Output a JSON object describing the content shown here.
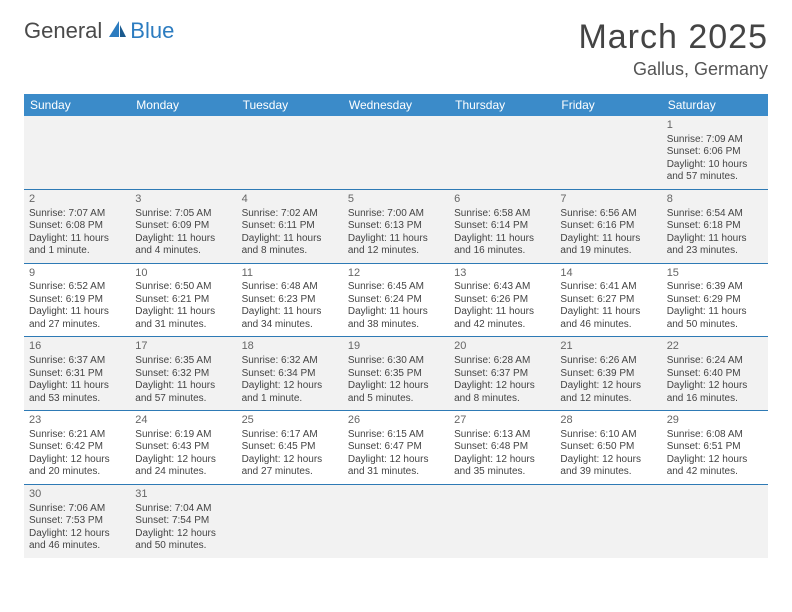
{
  "brand": {
    "part1": "General",
    "part2": "Blue",
    "color1": "#4a4a4a",
    "color2": "#2c7cc0"
  },
  "title": "March 2025",
  "location": "Gallus, Germany",
  "header_bg": "#3b8bc9",
  "border_color": "#2e7ab5",
  "shade_bg": "#f2f2f2",
  "day_headers": [
    "Sunday",
    "Monday",
    "Tuesday",
    "Wednesday",
    "Thursday",
    "Friday",
    "Saturday"
  ],
  "weeks": [
    [
      null,
      null,
      null,
      null,
      null,
      null,
      {
        "n": "1",
        "sr": "Sunrise: 7:09 AM",
        "ss": "Sunset: 6:06 PM",
        "dl1": "Daylight: 10 hours",
        "dl2": "and 57 minutes."
      }
    ],
    [
      {
        "n": "2",
        "sr": "Sunrise: 7:07 AM",
        "ss": "Sunset: 6:08 PM",
        "dl1": "Daylight: 11 hours",
        "dl2": "and 1 minute."
      },
      {
        "n": "3",
        "sr": "Sunrise: 7:05 AM",
        "ss": "Sunset: 6:09 PM",
        "dl1": "Daylight: 11 hours",
        "dl2": "and 4 minutes."
      },
      {
        "n": "4",
        "sr": "Sunrise: 7:02 AM",
        "ss": "Sunset: 6:11 PM",
        "dl1": "Daylight: 11 hours",
        "dl2": "and 8 minutes."
      },
      {
        "n": "5",
        "sr": "Sunrise: 7:00 AM",
        "ss": "Sunset: 6:13 PM",
        "dl1": "Daylight: 11 hours",
        "dl2": "and 12 minutes."
      },
      {
        "n": "6",
        "sr": "Sunrise: 6:58 AM",
        "ss": "Sunset: 6:14 PM",
        "dl1": "Daylight: 11 hours",
        "dl2": "and 16 minutes."
      },
      {
        "n": "7",
        "sr": "Sunrise: 6:56 AM",
        "ss": "Sunset: 6:16 PM",
        "dl1": "Daylight: 11 hours",
        "dl2": "and 19 minutes."
      },
      {
        "n": "8",
        "sr": "Sunrise: 6:54 AM",
        "ss": "Sunset: 6:18 PM",
        "dl1": "Daylight: 11 hours",
        "dl2": "and 23 minutes."
      }
    ],
    [
      {
        "n": "9",
        "sr": "Sunrise: 6:52 AM",
        "ss": "Sunset: 6:19 PM",
        "dl1": "Daylight: 11 hours",
        "dl2": "and 27 minutes."
      },
      {
        "n": "10",
        "sr": "Sunrise: 6:50 AM",
        "ss": "Sunset: 6:21 PM",
        "dl1": "Daylight: 11 hours",
        "dl2": "and 31 minutes."
      },
      {
        "n": "11",
        "sr": "Sunrise: 6:48 AM",
        "ss": "Sunset: 6:23 PM",
        "dl1": "Daylight: 11 hours",
        "dl2": "and 34 minutes."
      },
      {
        "n": "12",
        "sr": "Sunrise: 6:45 AM",
        "ss": "Sunset: 6:24 PM",
        "dl1": "Daylight: 11 hours",
        "dl2": "and 38 minutes."
      },
      {
        "n": "13",
        "sr": "Sunrise: 6:43 AM",
        "ss": "Sunset: 6:26 PM",
        "dl1": "Daylight: 11 hours",
        "dl2": "and 42 minutes."
      },
      {
        "n": "14",
        "sr": "Sunrise: 6:41 AM",
        "ss": "Sunset: 6:27 PM",
        "dl1": "Daylight: 11 hours",
        "dl2": "and 46 minutes."
      },
      {
        "n": "15",
        "sr": "Sunrise: 6:39 AM",
        "ss": "Sunset: 6:29 PM",
        "dl1": "Daylight: 11 hours",
        "dl2": "and 50 minutes."
      }
    ],
    [
      {
        "n": "16",
        "sr": "Sunrise: 6:37 AM",
        "ss": "Sunset: 6:31 PM",
        "dl1": "Daylight: 11 hours",
        "dl2": "and 53 minutes."
      },
      {
        "n": "17",
        "sr": "Sunrise: 6:35 AM",
        "ss": "Sunset: 6:32 PM",
        "dl1": "Daylight: 11 hours",
        "dl2": "and 57 minutes."
      },
      {
        "n": "18",
        "sr": "Sunrise: 6:32 AM",
        "ss": "Sunset: 6:34 PM",
        "dl1": "Daylight: 12 hours",
        "dl2": "and 1 minute."
      },
      {
        "n": "19",
        "sr": "Sunrise: 6:30 AM",
        "ss": "Sunset: 6:35 PM",
        "dl1": "Daylight: 12 hours",
        "dl2": "and 5 minutes."
      },
      {
        "n": "20",
        "sr": "Sunrise: 6:28 AM",
        "ss": "Sunset: 6:37 PM",
        "dl1": "Daylight: 12 hours",
        "dl2": "and 8 minutes."
      },
      {
        "n": "21",
        "sr": "Sunrise: 6:26 AM",
        "ss": "Sunset: 6:39 PM",
        "dl1": "Daylight: 12 hours",
        "dl2": "and 12 minutes."
      },
      {
        "n": "22",
        "sr": "Sunrise: 6:24 AM",
        "ss": "Sunset: 6:40 PM",
        "dl1": "Daylight: 12 hours",
        "dl2": "and 16 minutes."
      }
    ],
    [
      {
        "n": "23",
        "sr": "Sunrise: 6:21 AM",
        "ss": "Sunset: 6:42 PM",
        "dl1": "Daylight: 12 hours",
        "dl2": "and 20 minutes."
      },
      {
        "n": "24",
        "sr": "Sunrise: 6:19 AM",
        "ss": "Sunset: 6:43 PM",
        "dl1": "Daylight: 12 hours",
        "dl2": "and 24 minutes."
      },
      {
        "n": "25",
        "sr": "Sunrise: 6:17 AM",
        "ss": "Sunset: 6:45 PM",
        "dl1": "Daylight: 12 hours",
        "dl2": "and 27 minutes."
      },
      {
        "n": "26",
        "sr": "Sunrise: 6:15 AM",
        "ss": "Sunset: 6:47 PM",
        "dl1": "Daylight: 12 hours",
        "dl2": "and 31 minutes."
      },
      {
        "n": "27",
        "sr": "Sunrise: 6:13 AM",
        "ss": "Sunset: 6:48 PM",
        "dl1": "Daylight: 12 hours",
        "dl2": "and 35 minutes."
      },
      {
        "n": "28",
        "sr": "Sunrise: 6:10 AM",
        "ss": "Sunset: 6:50 PM",
        "dl1": "Daylight: 12 hours",
        "dl2": "and 39 minutes."
      },
      {
        "n": "29",
        "sr": "Sunrise: 6:08 AM",
        "ss": "Sunset: 6:51 PM",
        "dl1": "Daylight: 12 hours",
        "dl2": "and 42 minutes."
      }
    ],
    [
      {
        "n": "30",
        "sr": "Sunrise: 7:06 AM",
        "ss": "Sunset: 7:53 PM",
        "dl1": "Daylight: 12 hours",
        "dl2": "and 46 minutes."
      },
      {
        "n": "31",
        "sr": "Sunrise: 7:04 AM",
        "ss": "Sunset: 7:54 PM",
        "dl1": "Daylight: 12 hours",
        "dl2": "and 50 minutes."
      },
      null,
      null,
      null,
      null,
      null
    ]
  ]
}
